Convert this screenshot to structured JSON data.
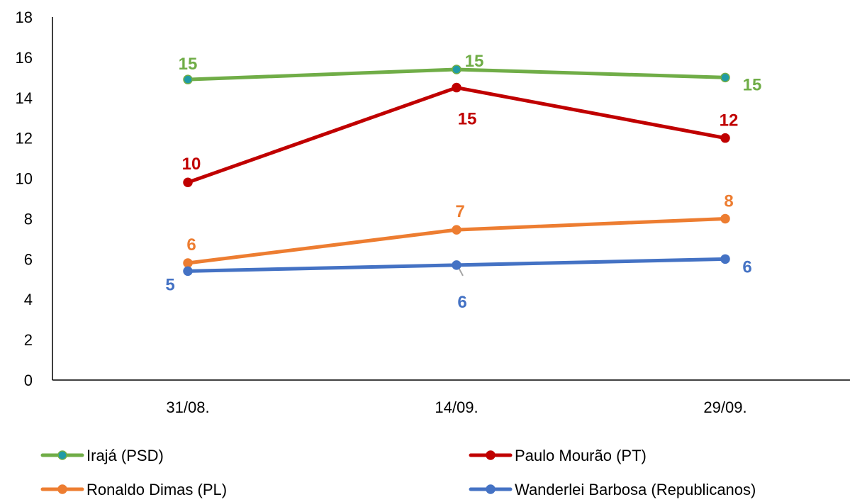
{
  "chart_data": {
    "type": "line",
    "categories": [
      "31/08.",
      "14/09.",
      "29/09."
    ],
    "ylim": [
      0,
      18
    ],
    "yticks": [
      0,
      2,
      4,
      6,
      8,
      10,
      12,
      14,
      16,
      18
    ],
    "grid": false,
    "legend_position": "bottom",
    "series": [
      {
        "name": "Irajá (PSD)",
        "color": "#70AD47",
        "marker_color": "#1F9BA6",
        "values": [
          14.9,
          15.4,
          15.0
        ],
        "labels": [
          "15",
          "15",
          "15"
        ]
      },
      {
        "name": "Paulo Mourão (PT)",
        "color": "#C00000",
        "marker_color": "#C00000",
        "values": [
          9.8,
          14.5,
          12.0
        ],
        "labels": [
          "10",
          "15",
          "12"
        ]
      },
      {
        "name": "Ronaldo Dimas (PL)",
        "color": "#ED7D31",
        "marker_color": "#ED7D31",
        "values": [
          5.8,
          7.45,
          8.0
        ],
        "labels": [
          "6",
          "7",
          "8"
        ]
      },
      {
        "name": "Wanderlei Barbosa (Republicanos)",
        "color": "#4472C4",
        "marker_color": "#4472C4",
        "values": [
          5.4,
          5.7,
          6.0
        ],
        "labels": [
          "5",
          "6",
          "6"
        ]
      }
    ]
  }
}
